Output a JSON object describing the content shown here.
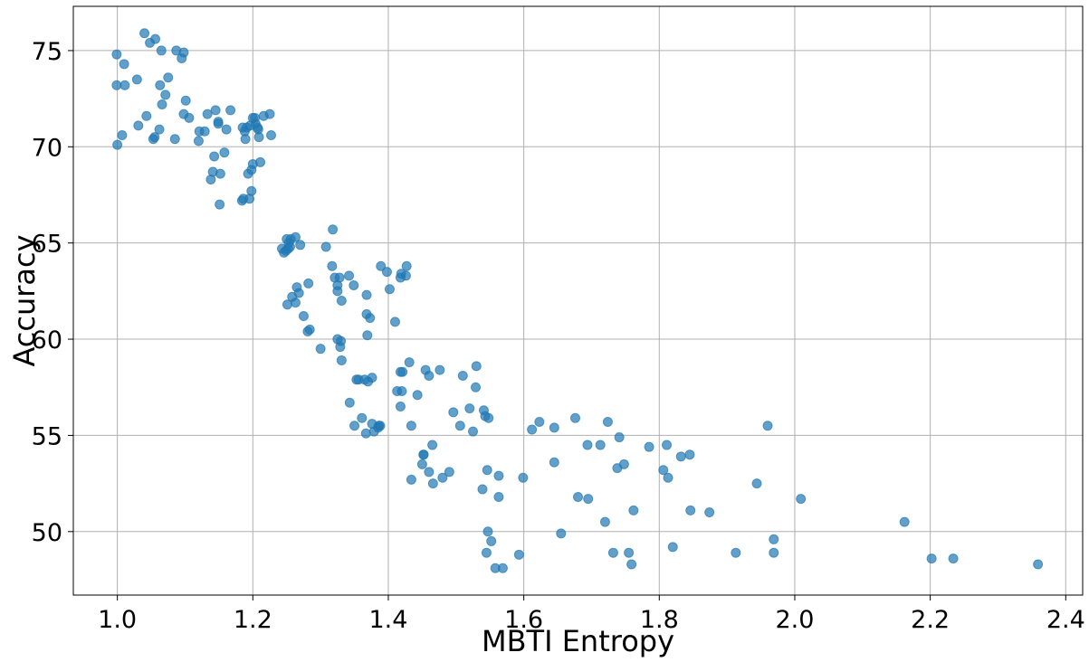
{
  "chart_data": {
    "type": "scatter",
    "title": "",
    "xlabel": "MBTI Entropy",
    "ylabel": "Accuracy",
    "xlim": [
      0.935,
      2.425
    ],
    "ylim": [
      46.7,
      77.3
    ],
    "xticks": [
      1.0,
      1.2,
      1.4,
      1.6,
      1.8,
      2.0,
      2.2,
      2.4
    ],
    "xtick_labels": [
      "1.0",
      "1.2",
      "1.4",
      "1.6",
      "1.8",
      "2.0",
      "2.2",
      "2.4"
    ],
    "yticks": [
      50,
      55,
      60,
      65,
      70,
      75
    ],
    "ytick_labels": [
      "50",
      "55",
      "60",
      "65",
      "70",
      "75"
    ],
    "grid": true,
    "marker_color": "#1f77b4",
    "marker_alpha": 0.7,
    "series": [
      {
        "x": [
          1.04,
          1.048,
          1.056,
          0.999,
          1.01,
          1.011,
          0.999,
          1.0,
          1.007,
          1.029,
          1.031,
          1.043,
          1.055,
          1.053,
          1.062,
          1.063,
          1.065,
          1.066,
          1.071,
          1.075,
          1.085,
          1.087,
          1.095,
          1.098,
          1.101,
          1.106,
          1.098,
          1.121,
          1.12,
          1.129,
          1.133,
          1.138,
          1.141,
          1.145,
          1.143,
          1.149,
          1.149,
          1.152,
          1.151,
          1.161,
          1.158,
          1.167,
          1.184,
          1.186,
          1.189,
          1.191,
          1.193,
          1.198,
          1.2,
          1.198,
          1.203,
          1.204,
          1.207,
          1.208,
          1.209,
          1.211,
          1.216,
          1.225,
          1.227,
          1.185,
          1.188,
          1.195,
          1.196,
          1.2,
          1.243,
          1.246,
          1.249,
          1.252,
          1.255,
          1.253,
          1.256,
          1.25,
          1.263,
          1.265,
          1.27,
          1.258,
          1.263,
          1.268,
          1.275,
          1.282,
          1.251,
          1.318,
          1.308,
          1.317,
          1.321,
          1.325,
          1.325,
          1.328,
          1.331,
          1.342,
          1.33,
          1.329,
          1.349,
          1.368,
          1.368,
          1.373,
          1.389,
          1.398,
          1.41,
          1.402,
          1.418,
          1.419,
          1.426,
          1.427,
          1.421,
          1.284,
          1.3,
          1.325,
          1.331,
          1.343,
          1.35,
          1.356,
          1.361,
          1.365,
          1.37,
          1.376,
          1.376,
          1.379,
          1.386,
          1.385,
          1.388,
          1.281,
          1.369,
          1.353,
          1.367,
          1.413,
          1.418,
          1.42,
          1.418,
          1.431,
          1.434,
          1.443,
          1.45,
          1.455,
          1.46,
          1.476,
          1.496,
          1.51,
          1.52,
          1.525,
          1.53,
          1.529,
          1.541,
          1.543,
          1.548,
          1.452,
          1.46,
          1.466,
          1.452,
          1.48,
          1.49,
          1.506,
          1.434,
          1.465,
          1.546,
          1.563,
          1.539,
          1.563,
          1.599,
          1.612,
          1.623,
          1.645,
          1.645,
          1.676,
          1.694,
          1.713,
          1.724,
          1.741,
          1.748,
          1.738,
          1.68,
          1.695,
          1.72,
          1.762,
          1.785,
          1.811,
          1.806,
          1.813,
          1.832,
          1.845,
          1.846,
          1.874,
          1.944,
          1.96,
          2.009,
          2.162,
          1.655,
          1.547,
          1.552,
          1.545,
          1.558,
          1.569,
          1.593,
          1.732,
          1.755,
          1.759,
          1.82,
          1.913,
          1.969,
          1.969,
          2.202,
          2.234,
          2.359
        ],
        "y": [
          75.9,
          75.4,
          75.6,
          74.8,
          74.3,
          73.2,
          73.2,
          70.1,
          70.6,
          73.5,
          71.1,
          71.6,
          70.5,
          70.4,
          70.9,
          73.2,
          75.0,
          72.2,
          72.7,
          73.6,
          70.4,
          75.0,
          74.6,
          71.7,
          72.4,
          71.5,
          74.9,
          70.8,
          70.3,
          70.8,
          71.7,
          68.3,
          68.7,
          71.9,
          69.5,
          71.3,
          71.2,
          68.6,
          67.0,
          70.9,
          69.7,
          71.9,
          67.2,
          67.3,
          70.4,
          71.0,
          68.6,
          68.8,
          69.1,
          67.7,
          71.5,
          71.2,
          71.0,
          70.9,
          70.5,
          69.2,
          71.6,
          71.7,
          70.6,
          71.0,
          70.8,
          67.3,
          71.1,
          71.5,
          64.7,
          64.5,
          64.6,
          64.7,
          64.8,
          65.0,
          65.2,
          65.2,
          65.3,
          62.7,
          64.9,
          62.2,
          61.9,
          62.4,
          61.2,
          62.9,
          61.8,
          65.7,
          64.8,
          63.8,
          63.2,
          62.8,
          62.5,
          63.2,
          62.0,
          63.3,
          59.9,
          59.6,
          62.8,
          62.3,
          61.3,
          61.1,
          63.8,
          63.5,
          60.9,
          62.6,
          63.2,
          63.4,
          63.3,
          63.8,
          58.3,
          60.5,
          59.5,
          60.0,
          58.9,
          56.7,
          55.5,
          57.9,
          55.9,
          57.9,
          57.8,
          55.6,
          58.0,
          55.2,
          55.5,
          55.4,
          55.5,
          60.4,
          60.2,
          57.9,
          55.1,
          57.3,
          56.5,
          57.3,
          58.3,
          58.8,
          55.5,
          57.1,
          53.5,
          58.4,
          58.1,
          58.4,
          56.2,
          58.1,
          56.4,
          55.2,
          58.6,
          57.5,
          56.3,
          56.0,
          55.9,
          54.0,
          53.1,
          52.5,
          54.0,
          52.8,
          53.1,
          55.5,
          52.7,
          54.5,
          53.2,
          52.9,
          52.2,
          51.8,
          52.8,
          55.3,
          55.7,
          55.4,
          53.6,
          55.9,
          54.5,
          54.5,
          55.7,
          54.9,
          53.5,
          53.3,
          51.8,
          51.7,
          50.5,
          51.1,
          54.4,
          54.5,
          53.2,
          52.8,
          53.9,
          54.0,
          51.1,
          51.0,
          52.5,
          55.5,
          51.7,
          50.5,
          49.9,
          50.0,
          49.5,
          48.9,
          48.1,
          48.1,
          48.8,
          48.9,
          48.9,
          48.3,
          49.2,
          48.9,
          48.9,
          49.6,
          48.6,
          48.6,
          48.3
        ]
      }
    ]
  }
}
